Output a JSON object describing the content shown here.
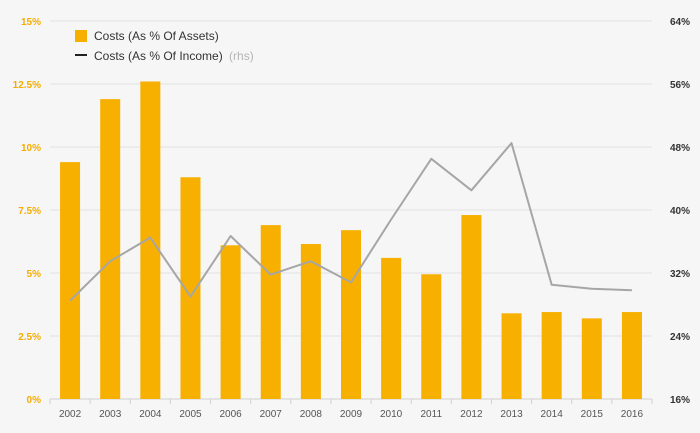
{
  "chart_data": {
    "type": "bar",
    "categories": [
      "2002",
      "2003",
      "2004",
      "2005",
      "2006",
      "2007",
      "2008",
      "2009",
      "2010",
      "2011",
      "2012",
      "2013",
      "2014",
      "2015",
      "2016"
    ],
    "series": [
      {
        "name": "Costs (As % Of Assets)",
        "axis": "left",
        "type": "bar",
        "values": [
          9.4,
          11.9,
          12.6,
          8.8,
          6.1,
          6.9,
          6.15,
          6.7,
          5.6,
          4.95,
          7.3,
          3.4,
          3.45,
          3.2,
          3.45
        ]
      },
      {
        "name": "Costs (As % Of Income)",
        "axis": "right",
        "type": "line",
        "values": [
          28.5,
          33.5,
          36.5,
          29.0,
          36.7,
          31.8,
          33.5,
          30.8,
          38.8,
          46.5,
          42.5,
          48.5,
          30.5,
          30.0,
          29.8
        ]
      }
    ],
    "y_left": {
      "ylim": [
        0,
        15
      ],
      "ticks": [
        0,
        2.5,
        5,
        7.5,
        10,
        12.5,
        15
      ],
      "tick_labels": [
        "0%",
        "2.5%",
        "5%",
        "7.5%",
        "10%",
        "12.5%",
        "15%"
      ]
    },
    "y_right": {
      "ylim": [
        16,
        64
      ],
      "ticks": [
        16,
        24,
        32,
        40,
        48,
        56,
        64
      ],
      "tick_labels": [
        "16%",
        "24%",
        "32%",
        "40%",
        "48%",
        "56%",
        "64%"
      ]
    },
    "legend": {
      "placement": "top-left",
      "items": [
        {
          "label": "Costs (As % Of Assets)",
          "suffix": ""
        },
        {
          "label": "Costs (As % Of Income)",
          "suffix": "(rhs)"
        }
      ]
    },
    "grid": true,
    "colors": {
      "bar": "#f7b000",
      "line": "#a6a6a6",
      "legend_line": "#222222",
      "left_tick": "#f5ad00",
      "right_tick": "#333333",
      "grid": "#e2e2e2"
    }
  }
}
